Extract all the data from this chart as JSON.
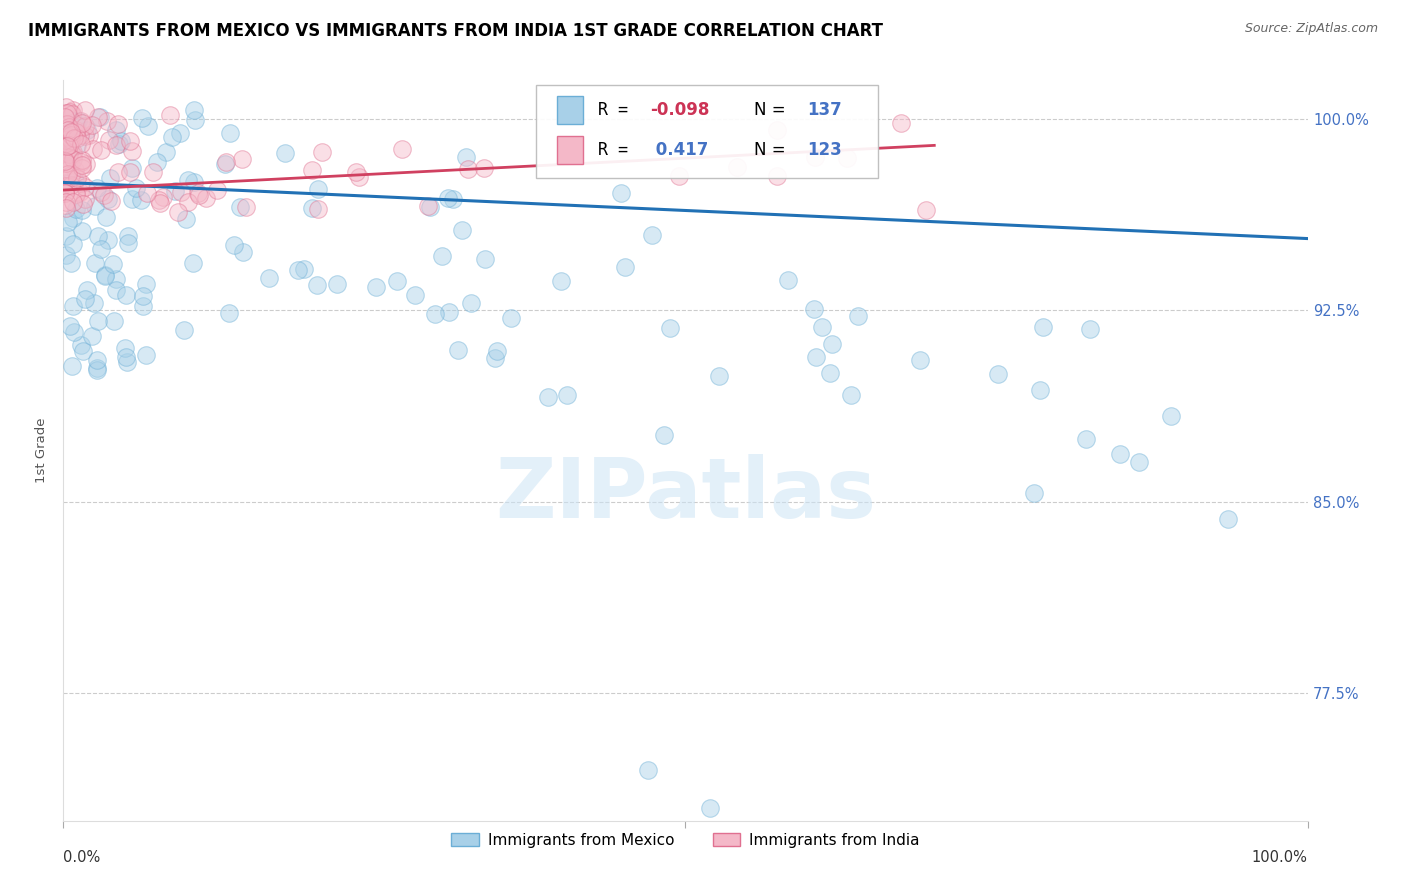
{
  "title": "IMMIGRANTS FROM MEXICO VS IMMIGRANTS FROM INDIA 1ST GRADE CORRELATION CHART",
  "source": "Source: ZipAtlas.com",
  "ylabel": "1st Grade",
  "yticks": [
    "100.0%",
    "92.5%",
    "85.0%",
    "77.5%"
  ],
  "ytick_values": [
    1.0,
    0.925,
    0.85,
    0.775
  ],
  "xrange": [
    0.0,
    1.0
  ],
  "yrange": [
    0.725,
    1.015
  ],
  "mexico_R": -0.098,
  "mexico_N": 137,
  "india_R": 0.417,
  "india_N": 123,
  "mexico_color": "#a8d0e8",
  "mexico_edge": "#6baed6",
  "india_color": "#f4b8c8",
  "india_edge": "#e07090",
  "mexico_line_color": "#2171b5",
  "india_line_color": "#d04060",
  "watermark": "ZIPatlas",
  "background_color": "#ffffff",
  "grid_color": "#cccccc",
  "r_color": "#cc3355",
  "n_color": "#4472c4",
  "legend_R_color": "#cc3355",
  "legend_N_color": "#4472c4"
}
